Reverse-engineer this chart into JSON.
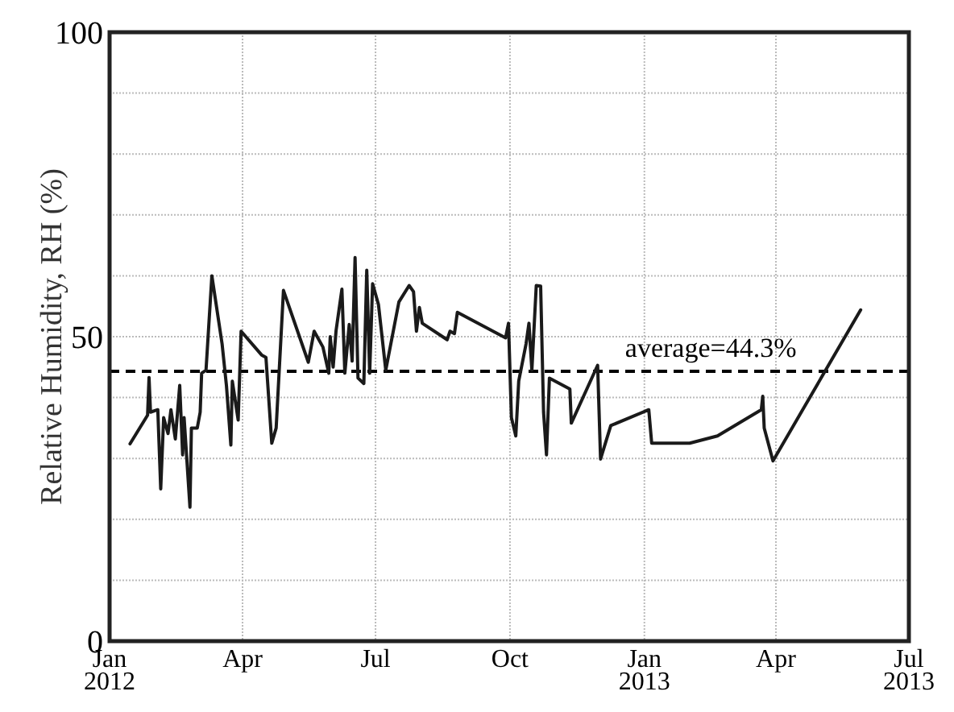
{
  "chart_data": {
    "type": "line",
    "ylabel": "Relative Humidity, RH (%)",
    "x": [
      "2012-01-15",
      "2012-01-27",
      "2012-01-28",
      "2012-01-29",
      "2012-02-03",
      "2012-02-04",
      "2012-02-05",
      "2012-02-07",
      "2012-02-10",
      "2012-02-12",
      "2012-02-15",
      "2012-02-18",
      "2012-02-20",
      "2012-02-21",
      "2012-02-25",
      "2012-02-26",
      "2012-03-01",
      "2012-03-03",
      "2012-03-04",
      "2012-03-07",
      "2012-03-11",
      "2012-03-18",
      "2012-03-21",
      "2012-03-24",
      "2012-03-25",
      "2012-03-29",
      "2012-03-31",
      "2012-04-14",
      "2012-04-17",
      "2012-04-21",
      "2012-04-24",
      "2012-04-29",
      "2012-05-16",
      "2012-05-20",
      "2012-05-26",
      "2012-05-30",
      "2012-05-31",
      "2012-06-02",
      "2012-06-04",
      "2012-06-08",
      "2012-06-10",
      "2012-06-13",
      "2012-06-15",
      "2012-06-17",
      "2012-06-19",
      "2012-06-23",
      "2012-06-25",
      "2012-06-27",
      "2012-06-29",
      "2012-07-03",
      "2012-07-08",
      "2012-07-17",
      "2012-07-24",
      "2012-07-27",
      "2012-07-29",
      "2012-07-31",
      "2012-08-02",
      "2012-08-19",
      "2012-08-21",
      "2012-08-24",
      "2012-08-26",
      "2012-09-28",
      "2012-09-30",
      "2012-10-02",
      "2012-10-05",
      "2012-10-07",
      "2012-10-12",
      "2012-10-14",
      "2012-10-16",
      "2012-10-19",
      "2012-10-22",
      "2012-10-24",
      "2012-10-26",
      "2012-10-28",
      "2012-11-11",
      "2012-11-12",
      "2012-11-30",
      "2012-12-02",
      "2012-12-09",
      "2013-01-04",
      "2013-01-06",
      "2013-02-01",
      "2013-02-20",
      "2013-03-22",
      "2013-03-23",
      "2013-03-24",
      "2013-03-30",
      "2013-05-29"
    ],
    "series": [
      {
        "color": "#1a1a1a",
        "values": [
          32.4,
          37.1,
          43.3,
          37.6,
          38,
          31.5,
          25,
          36.7,
          34.1,
          38,
          33.2,
          42,
          30.6,
          36.7,
          22,
          35,
          35,
          37.6,
          44,
          44.5,
          60,
          48.8,
          41.9,
          32.2,
          42.7,
          36.3,
          50.9,
          47,
          46.6,
          32.5,
          35,
          57.6,
          45.8,
          50.9,
          48.3,
          44,
          50,
          45,
          51,
          57.8,
          44,
          52,
          46,
          63,
          43.2,
          42.3,
          60.9,
          44,
          58.7,
          55.3,
          44.5,
          55.7,
          58.4,
          57.4,
          50.9,
          54.8,
          52.2,
          49.5,
          50.9,
          50.5,
          54,
          49.8,
          52.2,
          36.7,
          33.7,
          42.7,
          48.8,
          52.2,
          44.5,
          58.4,
          58.3,
          37.6,
          30.6,
          43.2,
          41.4,
          35.8,
          45.3,
          29.9,
          35.4,
          38,
          32.5,
          32.5,
          33.7,
          38,
          40.2,
          35,
          29.6,
          54.4
        ]
      }
    ],
    "xlim": [
      "2012-01-01",
      "2013-07-01"
    ],
    "xticks": [
      {
        "value": "2012-01-01",
        "label": "Jan\n2012"
      },
      {
        "value": "2012-04-01",
        "label": "Apr"
      },
      {
        "value": "2012-07-01",
        "label": "Jul"
      },
      {
        "value": "2012-10-01",
        "label": "Oct"
      },
      {
        "value": "2013-01-01",
        "label": "Jan\n2013"
      },
      {
        "value": "2013-04-01",
        "label": "Apr"
      },
      {
        "value": "2013-07-01",
        "label": "Jul\n2013"
      }
    ],
    "ylim": [
      0,
      100
    ],
    "yticks": [
      0,
      {
        "value": 10,
        "label": null
      },
      {
        "value": 20,
        "label": null
      },
      {
        "value": 30,
        "label": null
      },
      {
        "value": 40,
        "label": null
      },
      50,
      {
        "value": 60,
        "label": null
      },
      {
        "value": 70,
        "label": null
      },
      {
        "value": 80,
        "label": null
      },
      {
        "value": 90,
        "label": null
      },
      100
    ],
    "ref_lines": [
      {
        "axis": "y",
        "value": 44.3,
        "label": "average=44.3%",
        "line_style": "dashed",
        "color": "#000000"
      }
    ],
    "grid": true,
    "marker": "none",
    "line_style": "solid"
  }
}
